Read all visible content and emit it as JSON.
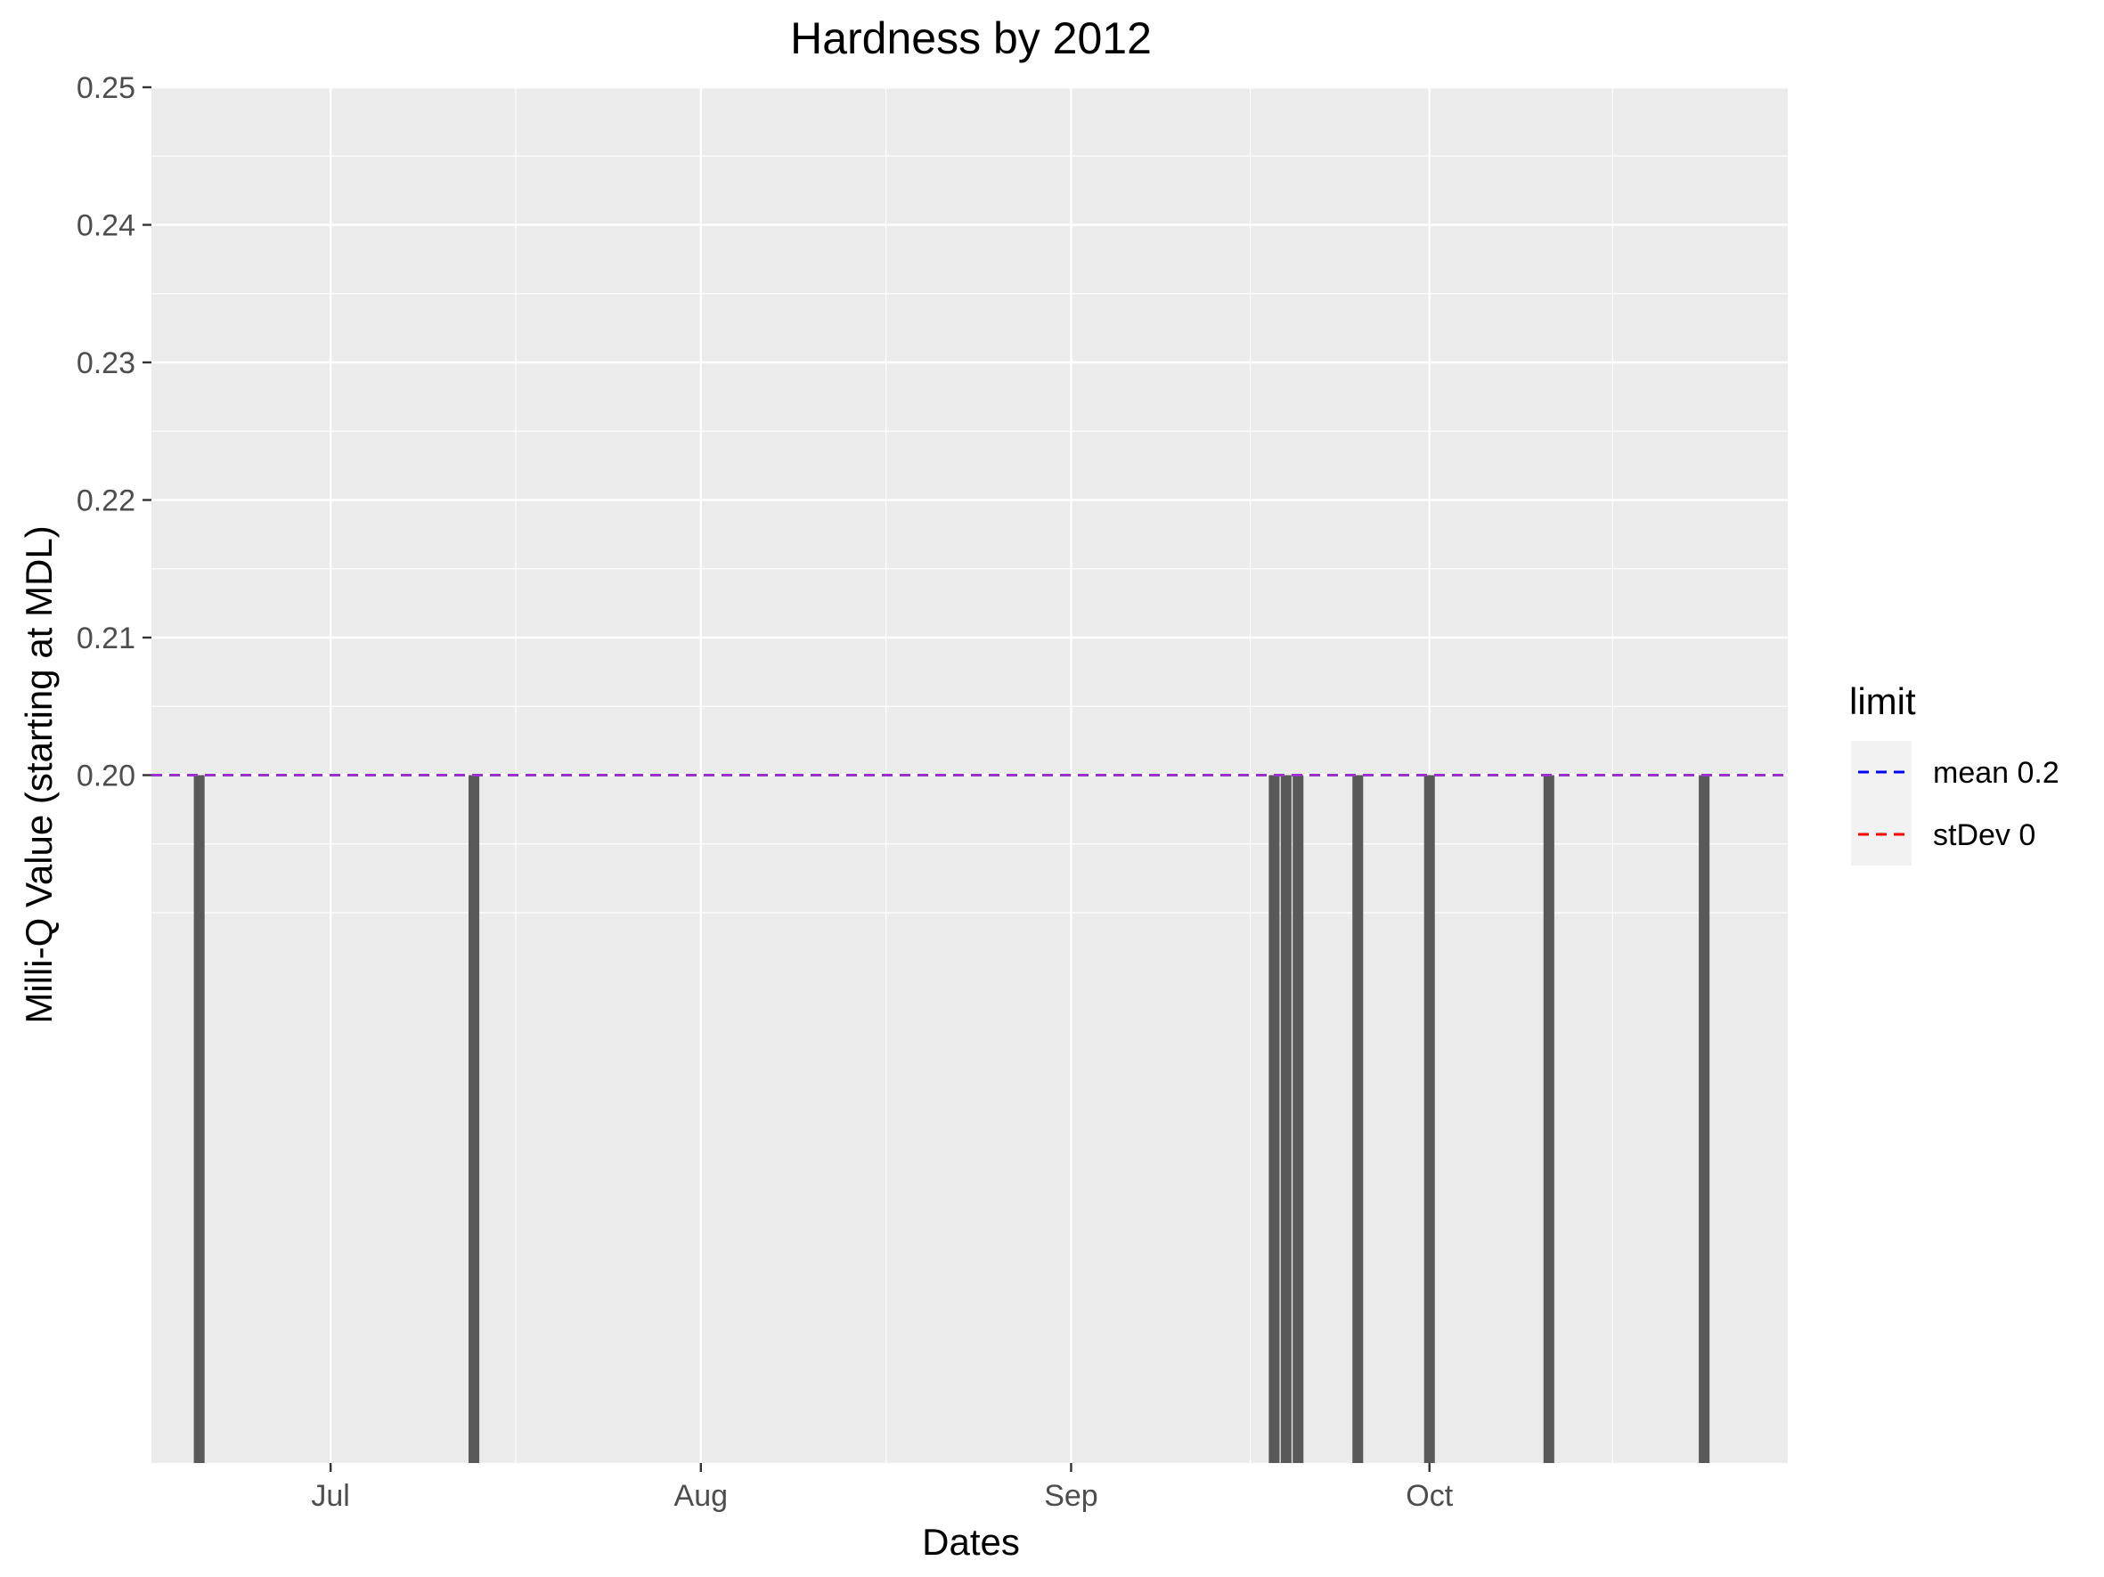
{
  "chart_data": {
    "type": "bar",
    "title": "Hardness by 2012",
    "xlabel": "Dates",
    "ylabel": "Milli-Q Value (starting at MDL)",
    "x_axis": {
      "type": "date",
      "range": [
        "2012-06-16",
        "2012-10-31"
      ],
      "ticks": [
        {
          "date": "2012-07-01",
          "label": "Jul"
        },
        {
          "date": "2012-08-01",
          "label": "Aug"
        },
        {
          "date": "2012-09-01",
          "label": "Sep"
        },
        {
          "date": "2012-10-01",
          "label": "Oct"
        }
      ]
    },
    "y_axis": {
      "range": [
        0.15,
        0.25
      ],
      "ticks": [
        0.2,
        0.21,
        0.22,
        0.23,
        0.24,
        0.25
      ],
      "tick_labels": [
        "0.20",
        "0.21",
        "0.22",
        "0.23",
        "0.24",
        "0.25"
      ]
    },
    "baseline": 0.15,
    "bars": [
      {
        "date": "2012-06-20",
        "value": 0.2
      },
      {
        "date": "2012-07-13",
        "value": 0.2
      },
      {
        "date": "2012-09-18",
        "value": 0.2
      },
      {
        "date": "2012-09-19",
        "value": 0.2
      },
      {
        "date": "2012-09-20",
        "value": 0.2
      },
      {
        "date": "2012-09-25",
        "value": 0.2
      },
      {
        "date": "2012-10-01",
        "value": 0.2
      },
      {
        "date": "2012-10-11",
        "value": 0.2
      },
      {
        "date": "2012-10-24",
        "value": 0.2
      }
    ],
    "hlines": [
      {
        "name": "mean 0.2",
        "value": 0.2,
        "color": "#0000ff",
        "dash": "dashed"
      },
      {
        "name": "stDev 0",
        "value": 0.2,
        "color": "#ff0000",
        "dash": "dashed"
      }
    ],
    "overlap_line_color": "#9932cc",
    "bar_color": "#595959",
    "panel_background": "#ebebeb",
    "grid": true,
    "legend": {
      "title": "limit",
      "position": "right",
      "entries": [
        {
          "label": "mean 0.2",
          "color": "#0000ff"
        },
        {
          "label": "stDev 0",
          "color": "#ff0000"
        }
      ]
    }
  }
}
